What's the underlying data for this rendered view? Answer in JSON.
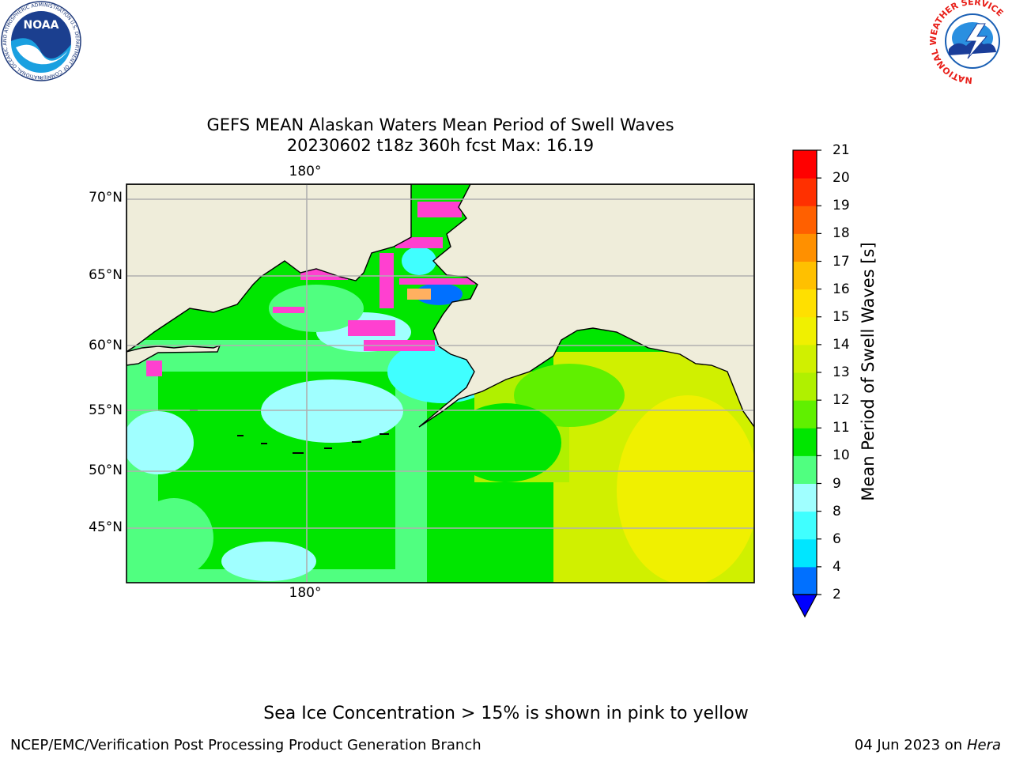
{
  "title_line1": "GEFS MEAN Alaskan Waters Mean Period of Swell Waves",
  "title_line2": "20230602 t18z 360h fcst   Max: 16.19",
  "logos": {
    "left": {
      "icon": "noaa-logo-icon",
      "text": "NOAA",
      "ring_text": "NATIONAL OCEANIC AND ATMOSPHERIC ADMINISTRATION U.S. DEPARTMENT OF COMMERCE"
    },
    "right": {
      "icon": "nws-logo-icon",
      "ring_text": "NATIONAL WEATHER SERVICE"
    }
  },
  "map": {
    "lat_labels": [
      "70°N",
      "65°N",
      "60°N",
      "55°N",
      "50°N",
      "45°N"
    ],
    "lon_label_top": "180°",
    "lon_label_bottom": "180°",
    "land_color": "#efedda",
    "gridline_color": "#b0b0b0"
  },
  "colorbar": {
    "label": "Mean Period of Swell Waves [s]",
    "ticks": [
      "2",
      "4",
      "6",
      "8",
      "9",
      "10",
      "11",
      "12",
      "13",
      "14",
      "15",
      "16",
      "17",
      "18",
      "19",
      "20",
      "21"
    ],
    "colors": [
      "#0070ff",
      "#00e6ff",
      "#40ffff",
      "#a0ffff",
      "#50ff80",
      "#00e600",
      "#60f000",
      "#b0f000",
      "#d0f000",
      "#f0f000",
      "#ffe000",
      "#ffc000",
      "#ff9000",
      "#ff6000",
      "#ff3000",
      "#ff0000"
    ],
    "under_color": "#0000ff"
  },
  "note": "Sea Ice Concentration > 15% is shown in pink to yellow",
  "footer": {
    "left": "NCEP/EMC/Verification Post Processing Product Generation Branch",
    "right_date": "04 Jun 2023 on",
    "right_host": "Hera"
  }
}
